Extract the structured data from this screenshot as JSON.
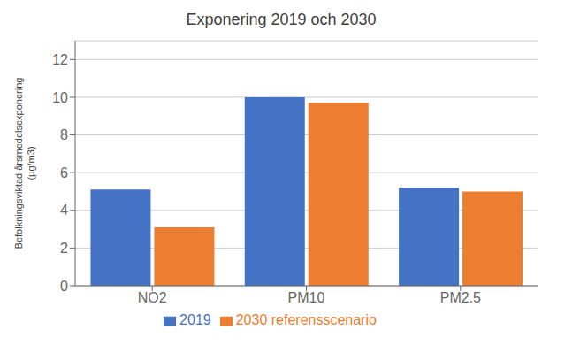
{
  "chart_data": {
    "type": "bar",
    "title": "Exponering 2019 och 2030",
    "categories": [
      "NO2",
      "PM10",
      "PM2.5"
    ],
    "series": [
      {
        "name": "2019",
        "color": "#4472C4",
        "values": [
          5.1,
          10.0,
          5.2
        ]
      },
      {
        "name": "2030 referensscenario",
        "color": "#ED7D31",
        "values": [
          3.1,
          9.7,
          5.0
        ]
      }
    ],
    "ylabel": "Befolkningsviktad årsmedelsexponering\n(µg/m3)",
    "ylim": [
      0,
      13
    ],
    "yticks": [
      0,
      2,
      4,
      6,
      8,
      10,
      12
    ],
    "grid": true,
    "legend": "bottom"
  }
}
